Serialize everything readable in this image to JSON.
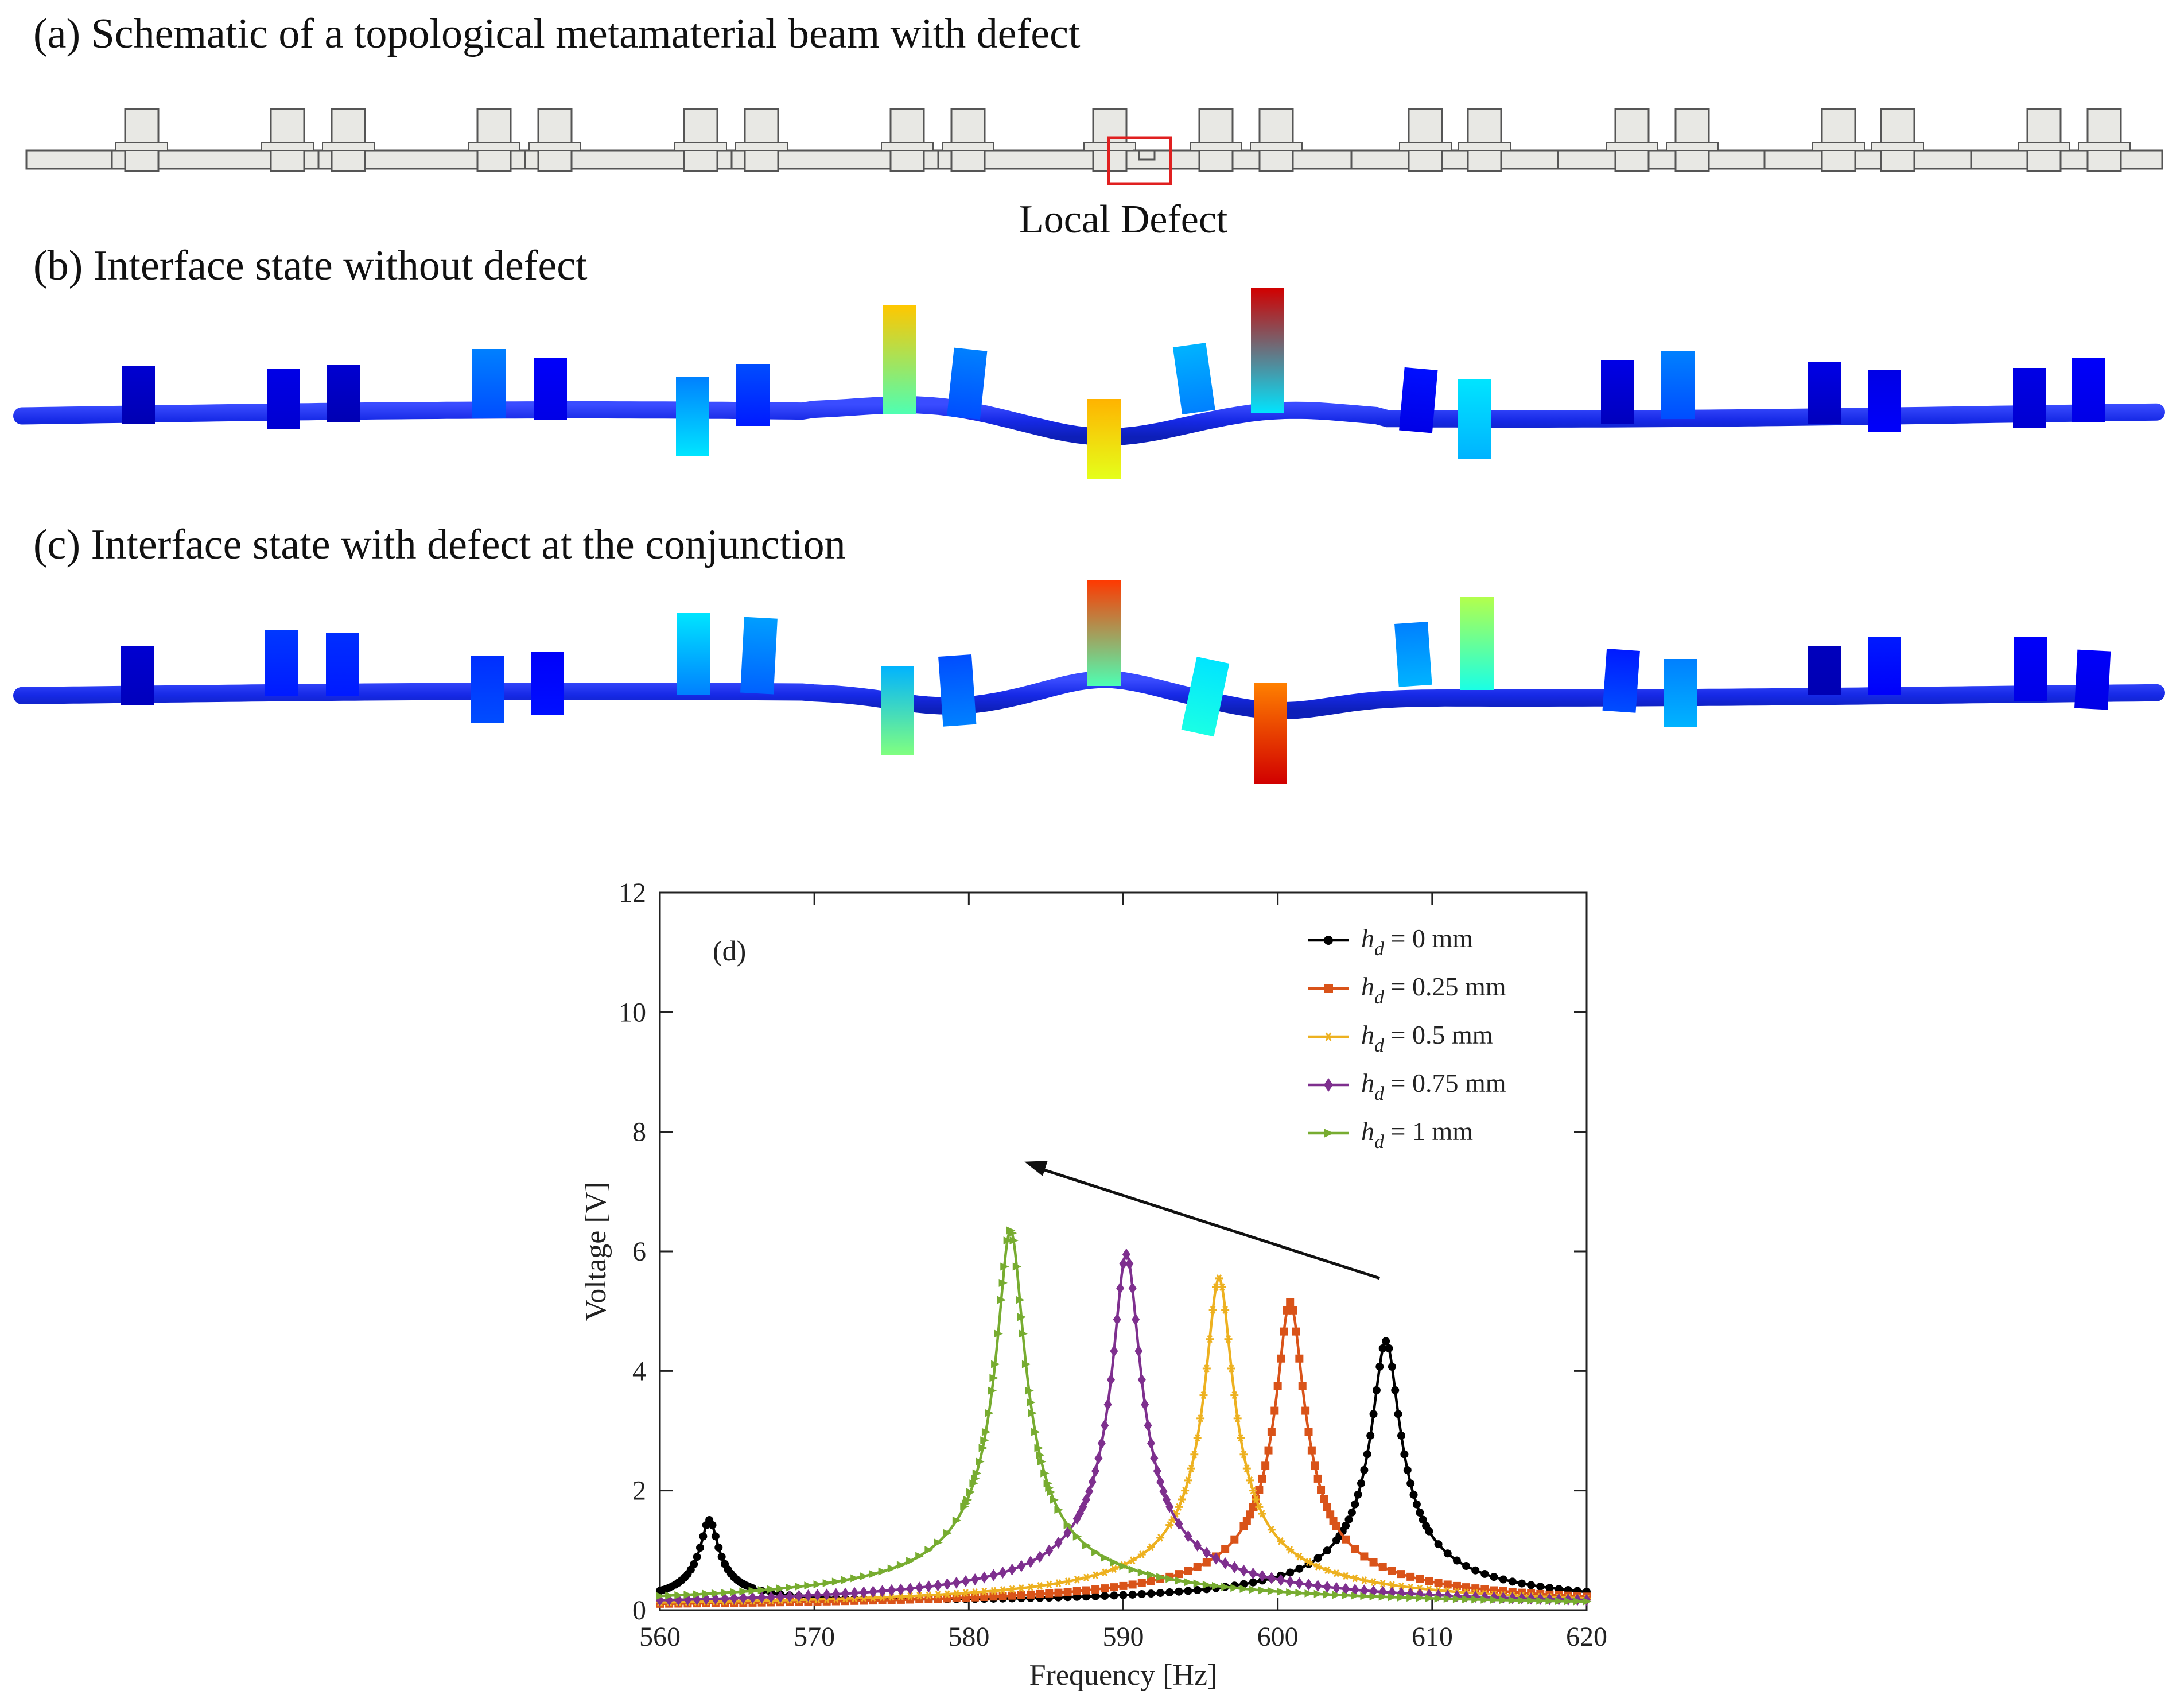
{
  "panels": {
    "a": {
      "caption": "(a) Schematic of a topological metamaterial beam with defect",
      "defect_label": "Local Defect"
    },
    "b": {
      "caption": "(b) Interface state without defect"
    },
    "c": {
      "caption": "(c) Interface state with defect at the conjunction"
    }
  },
  "colors": {
    "beam_fill": "#e8e8e4",
    "beam_stroke": "#555555",
    "defect_box": "#e02020",
    "deformed_beam": "#1a2ee8",
    "arrow": "#111111"
  },
  "chart_data": {
    "type": "line",
    "panel_label": "(d)",
    "xlabel": "Frequency [Hz]",
    "ylabel": "Voltage [V]",
    "xlim": [
      560,
      620
    ],
    "ylim": [
      0,
      12
    ],
    "xticks": [
      "560",
      "570",
      "580",
      "590",
      "600",
      "610",
      "620"
    ],
    "yticks": [
      "0",
      "2",
      "4",
      "6",
      "8",
      "10",
      "12"
    ],
    "legend_position": "top-right",
    "annotation": "arrow pointing from the 607 Hz peak toward lower frequency / higher voltage (peak shift with increasing defect height)",
    "series": [
      {
        "name": "h_d = 0 mm",
        "legend_var": "h",
        "legend_sub": "d",
        "legend_rest": " = 0 mm",
        "color": "#000000",
        "marker": "circle",
        "peaks": [
          {
            "f0": 563.2,
            "amp": 1.42,
            "gamma": 0.55
          },
          {
            "f0": 607.0,
            "amp": 4.48,
            "gamma": 0.85
          }
        ]
      },
      {
        "name": "h_d = 0.25 mm",
        "legend_var": "h",
        "legend_sub": "d",
        "legend_rest": " = 0.25 mm",
        "color": "#d95319",
        "marker": "square",
        "peaks": [
          {
            "f0": 600.8,
            "amp": 5.15,
            "gamma": 0.85
          }
        ]
      },
      {
        "name": "h_d = 0.5 mm",
        "legend_var": "h",
        "legend_sub": "d",
        "legend_rest": " = 0.5 mm",
        "color": "#edb120",
        "marker": "star",
        "peaks": [
          {
            "f0": 596.2,
            "amp": 5.55,
            "gamma": 0.85
          }
        ]
      },
      {
        "name": "h_d = 0.75 mm",
        "legend_var": "h",
        "legend_sub": "d",
        "legend_rest": " = 0.75 mm",
        "color": "#7e2f8e",
        "marker": "diamond",
        "peaks": [
          {
            "f0": 590.2,
            "amp": 5.95,
            "gamma": 0.85
          }
        ]
      },
      {
        "name": "h_d = 1 mm",
        "legend_var": "h",
        "legend_sub": "d",
        "legend_rest": " = 1 mm",
        "color": "#77ac30",
        "marker": "triangle-right",
        "peaks": [
          {
            "f0": 582.7,
            "amp": 6.35,
            "gamma": 0.85
          }
        ]
      }
    ]
  }
}
